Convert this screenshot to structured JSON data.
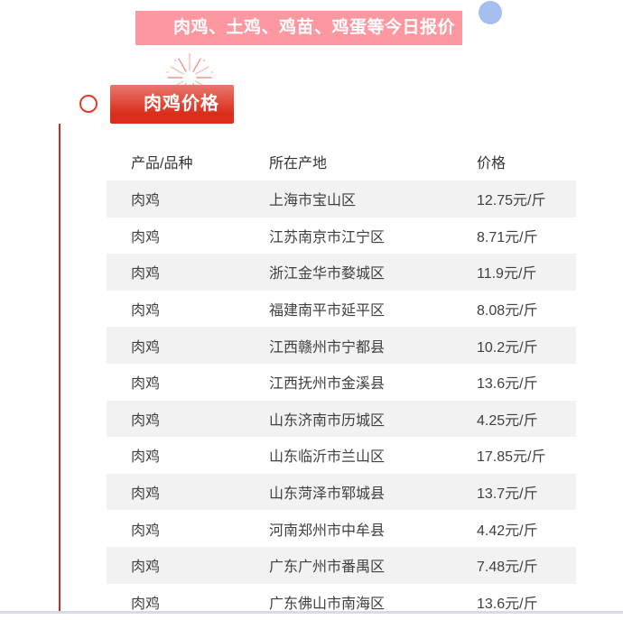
{
  "banner": {
    "title": "肉鸡、土鸡、鸡苗、鸡蛋等今日报价"
  },
  "section": {
    "badge_label": "肉鸡价格"
  },
  "table": {
    "headers": [
      "产品/品种",
      "所在产地",
      "价格"
    ],
    "rows": [
      [
        "肉鸡",
        "上海市宝山区",
        "12.75元/斤"
      ],
      [
        "肉鸡",
        "江苏南京市江宁区",
        "8.71元/斤"
      ],
      [
        "肉鸡",
        "浙江金华市婺城区",
        "11.9元/斤"
      ],
      [
        "肉鸡",
        "福建南平市延平区",
        "8.08元/斤"
      ],
      [
        "肉鸡",
        "江西赣州市宁都县",
        "10.2元/斤"
      ],
      [
        "肉鸡",
        "江西抚州市金溪县",
        "13.6元/斤"
      ],
      [
        "肉鸡",
        "山东济南市历城区",
        "4.25元/斤"
      ],
      [
        "肉鸡",
        "山东临沂市兰山区",
        "17.85元/斤"
      ],
      [
        "肉鸡",
        "山东菏泽市郓城县",
        "13.7元/斤"
      ],
      [
        "肉鸡",
        "河南郑州市中牟县",
        "4.42元/斤"
      ],
      [
        "肉鸡",
        "广东广州市番禺区",
        "7.48元/斤"
      ],
      [
        "肉鸡",
        "广东佛山市南海区",
        "13.6元/斤"
      ]
    ]
  },
  "colors": {
    "banner_bg": "#fd97a0",
    "badge_gradient_top": "#e8776e",
    "badge_gradient_bottom": "#da2d1b",
    "accent_line": "#c5301f",
    "ring": "#e23b2b",
    "blue_dot": "#a6bfee",
    "row_alt_bg": "#f2f2f2",
    "bottom_bar": "#d5dce5",
    "firework": "#f2958c",
    "firework_light": "#f8c0ba"
  }
}
